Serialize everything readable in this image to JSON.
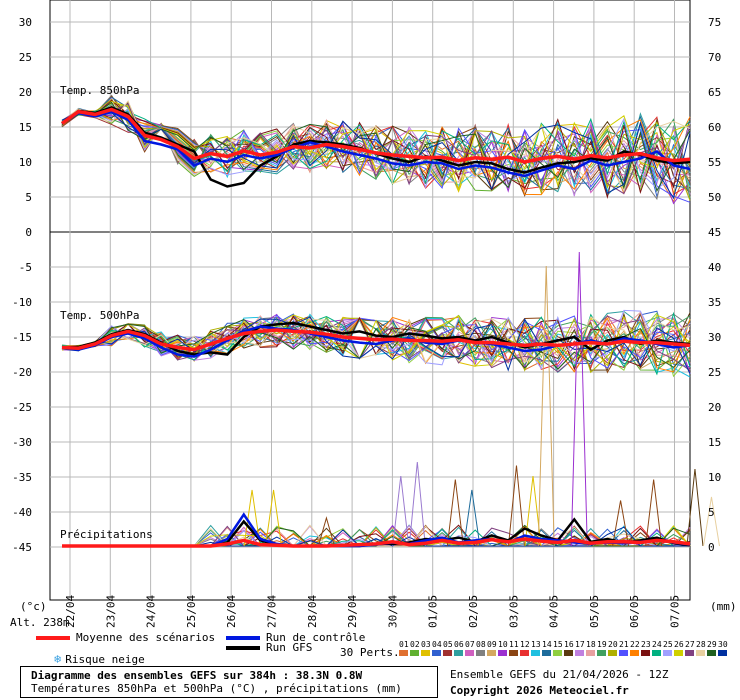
{
  "colors": {
    "mean": "#ff1a1a",
    "control": "#0018e0",
    "gfs": "#000000",
    "grid": "#b8b8b8"
  },
  "chart_data": {
    "type": "line",
    "panels": [
      {
        "label": "Temp. 850hPa",
        "left_ticks": [
          "30",
          "25",
          "20",
          "15",
          "10",
          "5",
          "0"
        ],
        "right_ticks": [
          "75",
          "70",
          "65",
          "60",
          "55",
          "50",
          "45"
        ],
        "mean": [
          15.5,
          17.2,
          16.8,
          17.5,
          16.5,
          13.8,
          13.2,
          12.2,
          10.5,
          11.2,
          10.8,
          11.6,
          11.0,
          11.4,
          12.2,
          12.0,
          12.5,
          12.2,
          11.8,
          11.3,
          11.0,
          10.8,
          10.6,
          10.7,
          10.2,
          10.6,
          10.4,
          10.7,
          10.0,
          10.5,
          10.8,
          10.4,
          10.9,
          10.6,
          11.0,
          11.2,
          10.6,
          10.2,
          10.4
        ],
        "control": [
          15.5,
          17.0,
          16.5,
          17.2,
          16.0,
          13.0,
          12.5,
          11.8,
          9.5,
          10.5,
          10.0,
          11.0,
          10.5,
          11.0,
          12.0,
          12.8,
          12.2,
          11.5,
          11.0,
          10.5,
          9.8,
          9.5,
          10.0,
          9.8,
          9.0,
          9.5,
          9.2,
          8.5,
          8.0,
          8.8,
          9.5,
          9.0,
          10.2,
          9.5,
          10.0,
          10.5,
          11.5,
          9.5,
          9.0
        ],
        "gfs": [
          15.5,
          17.3,
          17.0,
          17.8,
          16.8,
          14.2,
          13.5,
          12.5,
          11.5,
          7.5,
          6.5,
          7.0,
          9.5,
          10.8,
          12.5,
          13.0,
          12.8,
          12.5,
          12.0,
          11.2,
          10.5,
          10.0,
          10.8,
          10.2,
          9.5,
          10.0,
          9.8,
          9.0,
          8.5,
          9.2,
          9.8,
          10.0,
          10.5,
          10.2,
          11.5,
          11.0,
          10.2,
          9.8,
          10.0
        ]
      },
      {
        "label": "Temp. 500hPa",
        "left_ticks": [
          "-5",
          "-10",
          "-15",
          "-20",
          "-25",
          "-30",
          "-35",
          "-40",
          "-45"
        ],
        "right_ticks": [
          "40",
          "35",
          "30",
          "25",
          "20",
          "15",
          "10",
          "5",
          "0"
        ],
        "mean": [
          -16.5,
          -16.6,
          -16.0,
          -14.8,
          -14.2,
          -14.8,
          -16.0,
          -16.5,
          -16.8,
          -16.0,
          -15.2,
          -14.5,
          -14.2,
          -14.0,
          -14.2,
          -14.3,
          -14.6,
          -15.0,
          -15.2,
          -15.4,
          -15.3,
          -15.5,
          -15.5,
          -15.6,
          -15.4,
          -15.8,
          -15.8,
          -16.0,
          -16.2,
          -16.0,
          -16.2,
          -16.0,
          -15.8,
          -16.0,
          -15.6,
          -15.8,
          -15.8,
          -16.0,
          -16.2
        ],
        "control": [
          -16.5,
          -16.8,
          -16.2,
          -15.0,
          -14.5,
          -15.2,
          -16.5,
          -17.5,
          -17.8,
          -16.8,
          -15.5,
          -14.2,
          -13.5,
          -13.8,
          -14.0,
          -14.5,
          -15.0,
          -15.5,
          -15.8,
          -16.0,
          -15.5,
          -15.2,
          -15.8,
          -16.0,
          -15.5,
          -15.8,
          -16.0,
          -16.5,
          -17.0,
          -16.8,
          -16.2,
          -16.0,
          -15.5,
          -16.0,
          -15.2,
          -15.5,
          -16.0,
          -16.5,
          -16.2
        ],
        "gfs": [
          -16.5,
          -16.4,
          -15.8,
          -14.6,
          -14.0,
          -14.6,
          -15.8,
          -17.0,
          -17.5,
          -17.2,
          -17.5,
          -15.0,
          -13.5,
          -13.2,
          -13.0,
          -13.5,
          -14.0,
          -14.5,
          -14.2,
          -14.8,
          -15.0,
          -14.5,
          -14.8,
          -15.2,
          -15.0,
          -15.5,
          -15.0,
          -15.8,
          -16.5,
          -16.0,
          -15.5,
          -15.0,
          -16.8,
          -15.5,
          -15.0,
          -16.0,
          -15.5,
          -15.8,
          -16.0
        ]
      },
      {
        "label": "Précipitations",
        "mean": [
          0,
          0,
          0,
          0,
          0,
          0,
          0,
          0,
          0,
          0,
          0.3,
          0.8,
          0.2,
          0.1,
          0,
          0,
          0,
          0.1,
          0.2,
          0.3,
          0.6,
          0.2,
          0.4,
          0.8,
          0.4,
          0.5,
          0.9,
          0.6,
          1.0,
          0.7,
          0.5,
          0.8,
          0.4,
          0.6,
          0.6,
          0.5,
          0.8,
          0.6,
          0.3
        ],
        "control": [
          0,
          0,
          0,
          0,
          0,
          0,
          0,
          0,
          0,
          0,
          1.0,
          4.5,
          1.0,
          0.3,
          0,
          0,
          0,
          0,
          0,
          0.2,
          0.5,
          0.3,
          0.8,
          1.2,
          0.5,
          0.8,
          1.0,
          0.5,
          1.5,
          1.0,
          0.8,
          0.5,
          0.3,
          0.5,
          0.4,
          0.6,
          0.8,
          0.5,
          0.2
        ],
        "gfs": [
          0,
          0,
          0,
          0,
          0,
          0,
          0,
          0,
          0,
          0,
          0.5,
          3.5,
          0.8,
          0.2,
          0,
          0,
          0,
          0,
          0,
          0.3,
          0.3,
          0.5,
          1.0,
          0.8,
          1.2,
          0.6,
          1.5,
          0.8,
          2.5,
          1.5,
          0.8,
          3.8,
          0.6,
          1.0,
          0.5,
          0.8,
          1.2,
          0.4,
          0.1
        ],
        "spikes": [
          {
            "t": 11.5,
            "v": 8.0,
            "color": "#e0c000"
          },
          {
            "t": 12.8,
            "v": 8.0,
            "color": "#e0c000"
          },
          {
            "t": 16.0,
            "v": 4.0,
            "color": "#8b4513"
          },
          {
            "t": 20.5,
            "v": 10.0,
            "color": "#9b7bd0"
          },
          {
            "t": 21.5,
            "v": 12.0,
            "color": "#9b7bd0"
          },
          {
            "t": 23.8,
            "v": 9.5,
            "color": "#8b4513"
          },
          {
            "t": 24.8,
            "v": 8.0,
            "color": "#1d6b9b"
          },
          {
            "t": 27.5,
            "v": 11.5,
            "color": "#8b4513"
          },
          {
            "t": 28.5,
            "v": 10.0,
            "color": "#e0c000"
          },
          {
            "t": 29.3,
            "v": 40.0,
            "color": "#d4a860"
          },
          {
            "t": 31.3,
            "v": 42.0,
            "color": "#9b30d0"
          },
          {
            "t": 33.8,
            "v": 6.5,
            "color": "#8b4513"
          },
          {
            "t": 35.8,
            "v": 9.5,
            "color": "#8b4513"
          },
          {
            "t": 38.3,
            "v": 11.0,
            "color": "#5a3a10"
          },
          {
            "t": 39.3,
            "v": 7.0,
            "color": "#e8d0a0"
          }
        ]
      }
    ],
    "left_unit": "(°c)",
    "right_unit": "(mm)",
    "x_labels": [
      "22/04",
      "23/04",
      "24/04",
      "25/04",
      "26/04",
      "27/04",
      "28/04",
      "29/04",
      "30/04",
      "01/05",
      "02/05",
      "03/05",
      "04/05",
      "05/05",
      "06/05",
      "07/05"
    ]
  },
  "altitude": "Alt. 238m",
  "legend": {
    "mean": "Moyenne des scénarios",
    "control": "Run de contrôle",
    "gfs": "Run GFS",
    "snow": "Risque neige",
    "perts": "30 Perts."
  },
  "perturbations": [
    "01",
    "02",
    "03",
    "04",
    "05",
    "06",
    "07",
    "08",
    "09",
    "10",
    "11",
    "12",
    "13",
    "14",
    "15",
    "16",
    "17",
    "18",
    "19",
    "20",
    "21",
    "22",
    "23",
    "24",
    "25",
    "26",
    "27",
    "28",
    "29",
    "30"
  ],
  "pert_colors": [
    "#e07030",
    "#60b030",
    "#e0c000",
    "#3060d0",
    "#a03030",
    "#30a0a0",
    "#d060c0",
    "#808080",
    "#d4a860",
    "#9b30d0",
    "#8b4513",
    "#e83030",
    "#20c0e0",
    "#1d6b9b",
    "#90d040",
    "#5a3a10",
    "#c080e0",
    "#e8a0a0",
    "#40a060",
    "#b0b000",
    "#5050ff",
    "#ff8000",
    "#7a1010",
    "#00b080",
    "#a0a0ff",
    "#d0d000",
    "#804080",
    "#e8d0a0",
    "#206020",
    "#0030a0"
  ],
  "footer": {
    "title": "Diagramme des ensembles GEFS sur 384h : 38.3N 0.8W",
    "subtitle": "Températures 850hPa et 500hPa (°C) , précipitations (mm)",
    "run": "Ensemble GEFS du 21/04/2026 - 12Z",
    "copyright": "Copyright 2026 Meteociel.fr"
  }
}
